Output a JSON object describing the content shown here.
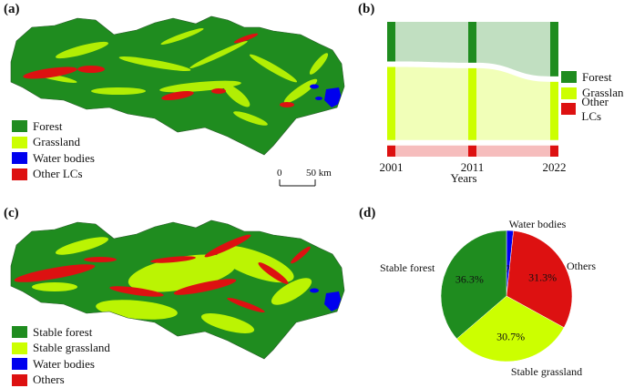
{
  "panels": {
    "a": {
      "label": "(a)"
    },
    "b": {
      "label": "(b)"
    },
    "c": {
      "label": "(c)"
    },
    "d": {
      "label": "(d)"
    }
  },
  "map_a": {
    "legend": [
      {
        "label": "Forest",
        "color": "#1f8c1f"
      },
      {
        "label": "Grassland",
        "color": "#ccff00"
      },
      {
        "label": "Water bodies",
        "color": "#0000ee"
      },
      {
        "label": "Other LCs",
        "color": "#dd1111"
      }
    ],
    "scale_bar": {
      "start": "0",
      "end": "50 km"
    }
  },
  "map_c": {
    "legend": [
      {
        "label": "Stable forest",
        "color": "#1f8c1f"
      },
      {
        "label": "Stable grassland",
        "color": "#ccff00"
      },
      {
        "label": "Water bodies",
        "color": "#0000ee"
      },
      {
        "label": "Others",
        "color": "#dd1111"
      }
    ]
  },
  "chart_data": [
    {
      "type": "sankey",
      "xlabel": "Years",
      "years": [
        "2001",
        "2011",
        "2022"
      ],
      "nodes": [
        {
          "name": "Forest",
          "color": "#1f8c1f",
          "values": [
            32,
            33,
            44
          ]
        },
        {
          "name": "Grassland",
          "color": "#ccff00",
          "values": [
            59,
            58,
            47
          ]
        },
        {
          "name": "Other LCs",
          "color": "#dd1111",
          "values": [
            9,
            9,
            9
          ]
        }
      ],
      "legend": [
        "Forest",
        "Grassland",
        "Other LCs"
      ]
    },
    {
      "type": "pie",
      "slices": [
        {
          "label": "Water bodies",
          "value": 1.7,
          "text": "1.7%",
          "color": "#0000ee"
        },
        {
          "label": "Others",
          "value": 31.3,
          "text": "31.3%",
          "color": "#dd1111"
        },
        {
          "label": "Stable grassland",
          "value": 30.7,
          "text": "30.7%",
          "color": "#ccff00"
        },
        {
          "label": "Stable forest",
          "value": 36.3,
          "text": "36.3%",
          "color": "#1f8c1f"
        }
      ]
    }
  ]
}
